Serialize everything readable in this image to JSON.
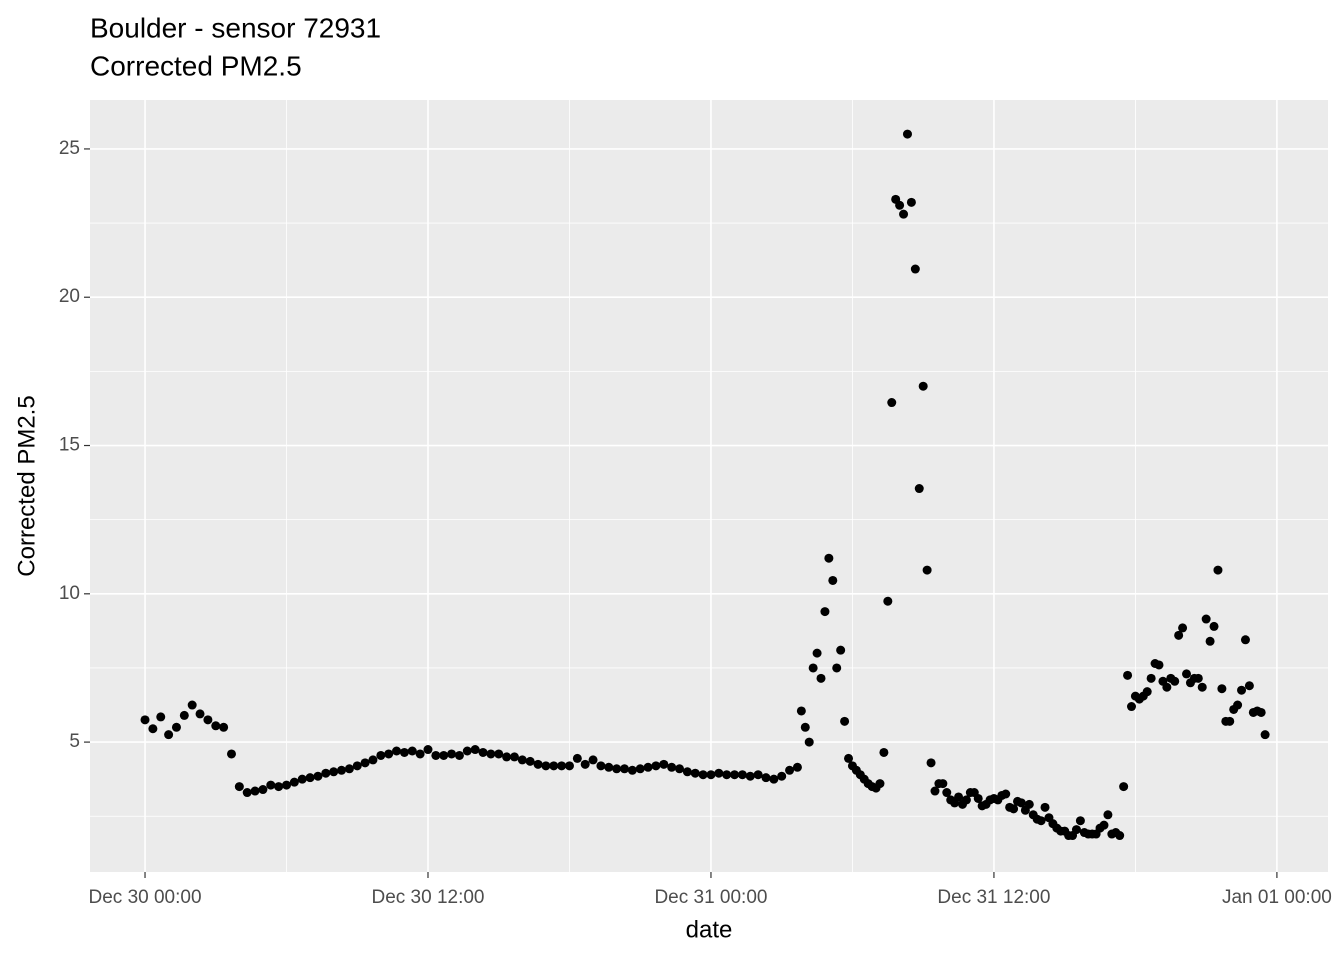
{
  "chart_data": {
    "type": "scatter",
    "title": "Boulder - sensor 72931",
    "subtitle": "Corrected PM2.5",
    "x_label": "date",
    "y_label": "Corrected PM2.5",
    "color": "#000000",
    "grid": true,
    "xlim": [
      "Dec 29 21:40",
      "Jan 01 02:10"
    ],
    "xticks": [
      "Dec 30 00:00",
      "Dec 30 12:00",
      "Dec 31 00:00",
      "Dec 31 12:00",
      "Jan 01 00:00"
    ],
    "ylim": [
      0.62,
      26.65
    ],
    "yticks": [
      5,
      10,
      15,
      20,
      25
    ],
    "x": [
      "Dec 30 00:00",
      "Dec 30 00:20",
      "Dec 30 00:40",
      "Dec 30 01:00",
      "Dec 30 01:20",
      "Dec 30 01:40",
      "Dec 30 02:00",
      "Dec 30 02:20",
      "Dec 30 02:40",
      "Dec 30 03:00",
      "Dec 30 03:20",
      "Dec 30 03:40",
      "Dec 30 04:00",
      "Dec 30 04:20",
      "Dec 30 04:40",
      "Dec 30 05:00",
      "Dec 30 05:20",
      "Dec 30 05:40",
      "Dec 30 06:00",
      "Dec 30 06:20",
      "Dec 30 06:40",
      "Dec 30 07:00",
      "Dec 30 07:20",
      "Dec 30 07:40",
      "Dec 30 08:00",
      "Dec 30 08:20",
      "Dec 30 08:40",
      "Dec 30 09:00",
      "Dec 30 09:20",
      "Dec 30 09:40",
      "Dec 30 10:00",
      "Dec 30 10:20",
      "Dec 30 10:40",
      "Dec 30 11:00",
      "Dec 30 11:20",
      "Dec 30 11:40",
      "Dec 30 12:00",
      "Dec 30 12:20",
      "Dec 30 12:40",
      "Dec 30 13:00",
      "Dec 30 13:20",
      "Dec 30 13:40",
      "Dec 30 14:00",
      "Dec 30 14:20",
      "Dec 30 14:40",
      "Dec 30 15:00",
      "Dec 30 15:20",
      "Dec 30 15:40",
      "Dec 30 16:00",
      "Dec 30 16:20",
      "Dec 30 16:40",
      "Dec 30 17:00",
      "Dec 30 17:20",
      "Dec 30 17:40",
      "Dec 30 18:00",
      "Dec 30 18:20",
      "Dec 30 18:40",
      "Dec 30 19:00",
      "Dec 30 19:20",
      "Dec 30 19:40",
      "Dec 30 20:00",
      "Dec 30 20:20",
      "Dec 30 20:40",
      "Dec 30 21:00",
      "Dec 30 21:20",
      "Dec 30 21:40",
      "Dec 30 22:00",
      "Dec 30 22:20",
      "Dec 30 22:40",
      "Dec 30 23:00",
      "Dec 30 23:20",
      "Dec 30 23:40",
      "Dec 31 00:00",
      "Dec 31 00:20",
      "Dec 31 00:40",
      "Dec 31 01:00",
      "Dec 31 01:20",
      "Dec 31 01:40",
      "Dec 31 02:00",
      "Dec 31 02:20",
      "Dec 31 02:40",
      "Dec 31 03:00",
      "Dec 31 03:20",
      "Dec 31 03:40",
      "Dec 31 03:50",
      "Dec 31 04:00",
      "Dec 31 04:10",
      "Dec 31 04:20",
      "Dec 31 04:30",
      "Dec 31 04:40",
      "Dec 31 04:50",
      "Dec 31 05:00",
      "Dec 31 05:10",
      "Dec 31 05:20",
      "Dec 31 05:30",
      "Dec 31 05:40",
      "Dec 31 05:50",
      "Dec 31 06:00",
      "Dec 31 06:10",
      "Dec 31 06:20",
      "Dec 31 06:30",
      "Dec 31 06:40",
      "Dec 31 06:50",
      "Dec 31 07:00",
      "Dec 31 07:10",
      "Dec 31 07:20",
      "Dec 31 07:30",
      "Dec 31 07:40",
      "Dec 31 07:50",
      "Dec 31 08:00",
      "Dec 31 08:10",
      "Dec 31 08:20",
      "Dec 31 08:30",
      "Dec 31 08:40",
      "Dec 31 08:50",
      "Dec 31 09:00",
      "Dec 31 09:10",
      "Dec 31 09:20",
      "Dec 31 09:30",
      "Dec 31 09:40",
      "Dec 31 09:50",
      "Dec 31 10:00",
      "Dec 31 10:10",
      "Dec 31 10:20",
      "Dec 31 10:30",
      "Dec 31 10:40",
      "Dec 31 10:50",
      "Dec 31 11:00",
      "Dec 31 11:10",
      "Dec 31 11:20",
      "Dec 31 11:30",
      "Dec 31 11:40",
      "Dec 31 11:50",
      "Dec 31 12:00",
      "Dec 31 12:10",
      "Dec 31 12:20",
      "Dec 31 12:30",
      "Dec 31 12:40",
      "Dec 31 12:50",
      "Dec 31 13:00",
      "Dec 31 13:10",
      "Dec 31 13:20",
      "Dec 31 13:30",
      "Dec 31 13:40",
      "Dec 31 13:50",
      "Dec 31 14:00",
      "Dec 31 14:10",
      "Dec 31 14:20",
      "Dec 31 14:30",
      "Dec 31 14:40",
      "Dec 31 14:50",
      "Dec 31 15:00",
      "Dec 31 15:10",
      "Dec 31 15:20",
      "Dec 31 15:30",
      "Dec 31 15:40",
      "Dec 31 15:50",
      "Dec 31 16:00",
      "Dec 31 16:10",
      "Dec 31 16:20",
      "Dec 31 16:30",
      "Dec 31 16:40",
      "Dec 31 16:50",
      "Dec 31 17:00",
      "Dec 31 17:10",
      "Dec 31 17:20",
      "Dec 31 17:30",
      "Dec 31 17:40",
      "Dec 31 17:50",
      "Dec 31 18:00",
      "Dec 31 18:10",
      "Dec 31 18:20",
      "Dec 31 18:30",
      "Dec 31 18:40",
      "Dec 31 18:50",
      "Dec 31 19:00",
      "Dec 31 19:10",
      "Dec 31 19:20",
      "Dec 31 19:30",
      "Dec 31 19:40",
      "Dec 31 19:50",
      "Dec 31 20:00",
      "Dec 31 20:10",
      "Dec 31 20:20",
      "Dec 31 20:30",
      "Dec 31 20:40",
      "Dec 31 20:50",
      "Dec 31 21:00",
      "Dec 31 21:10",
      "Dec 31 21:20",
      "Dec 31 21:30",
      "Dec 31 21:40",
      "Dec 31 21:50",
      "Dec 31 22:00",
      "Dec 31 22:10",
      "Dec 31 22:20",
      "Dec 31 22:30",
      "Dec 31 22:40",
      "Dec 31 22:50",
      "Dec 31 23:00",
      "Dec 31 23:10",
      "Dec 31 23:20",
      "Dec 31 23:30"
    ],
    "values": [
      5.75,
      5.45,
      5.85,
      5.25,
      5.5,
      5.9,
      6.25,
      5.95,
      5.75,
      5.55,
      5.5,
      4.6,
      3.5,
      3.3,
      3.35,
      3.4,
      3.55,
      3.5,
      3.55,
      3.65,
      3.75,
      3.8,
      3.85,
      3.95,
      4.0,
      4.05,
      4.1,
      4.2,
      4.3,
      4.4,
      4.55,
      4.6,
      4.7,
      4.65,
      4.7,
      4.6,
      4.75,
      4.55,
      4.55,
      4.6,
      4.55,
      4.7,
      4.75,
      4.65,
      4.6,
      4.6,
      4.5,
      4.5,
      4.4,
      4.35,
      4.25,
      4.2,
      4.2,
      4.2,
      4.2,
      4.45,
      4.25,
      4.4,
      4.2,
      4.15,
      4.1,
      4.1,
      4.05,
      4.1,
      4.15,
      4.2,
      4.25,
      4.15,
      4.1,
      4.0,
      3.95,
      3.9,
      3.9,
      3.95,
      3.9,
      3.9,
      3.9,
      3.85,
      3.9,
      3.8,
      3.75,
      3.85,
      4.05,
      4.15,
      6.05,
      5.5,
      5.0,
      7.5,
      8.0,
      7.15,
      9.4,
      11.2,
      10.45,
      7.5,
      8.1,
      5.7,
      4.45,
      4.2,
      4.05,
      3.9,
      3.75,
      3.6,
      3.5,
      3.45,
      3.6,
      4.65,
      9.75,
      16.45,
      23.3,
      23.1,
      22.8,
      25.5,
      23.2,
      20.95,
      13.55,
      17.0,
      10.8,
      4.3,
      3.35,
      3.6,
      3.6,
      3.3,
      3.05,
      2.95,
      3.15,
      2.9,
      3.05,
      3.3,
      3.3,
      3.1,
      2.85,
      2.9,
      3.05,
      3.1,
      3.05,
      3.2,
      3.25,
      2.8,
      2.75,
      3.0,
      2.95,
      2.7,
      2.9,
      2.55,
      2.4,
      2.35,
      2.8,
      2.45,
      2.25,
      2.1,
      2.0,
      2.0,
      1.85,
      1.85,
      2.05,
      2.35,
      1.95,
      1.9,
      1.9,
      1.9,
      2.1,
      2.2,
      2.55,
      1.9,
      1.95,
      1.85,
      3.5,
      7.25,
      6.2,
      6.55,
      6.45,
      6.55,
      6.7,
      7.15,
      7.65,
      7.6,
      7.05,
      6.85,
      7.15,
      7.05,
      8.6,
      8.85,
      7.3,
      7.0,
      7.15,
      7.15,
      6.85,
      9.15,
      8.4,
      8.9,
      10.8,
      6.8,
      5.7,
      5.7,
      6.1,
      6.25,
      6.75,
      8.45,
      6.9,
      6.0,
      6.05,
      6.0,
      5.25
    ]
  }
}
